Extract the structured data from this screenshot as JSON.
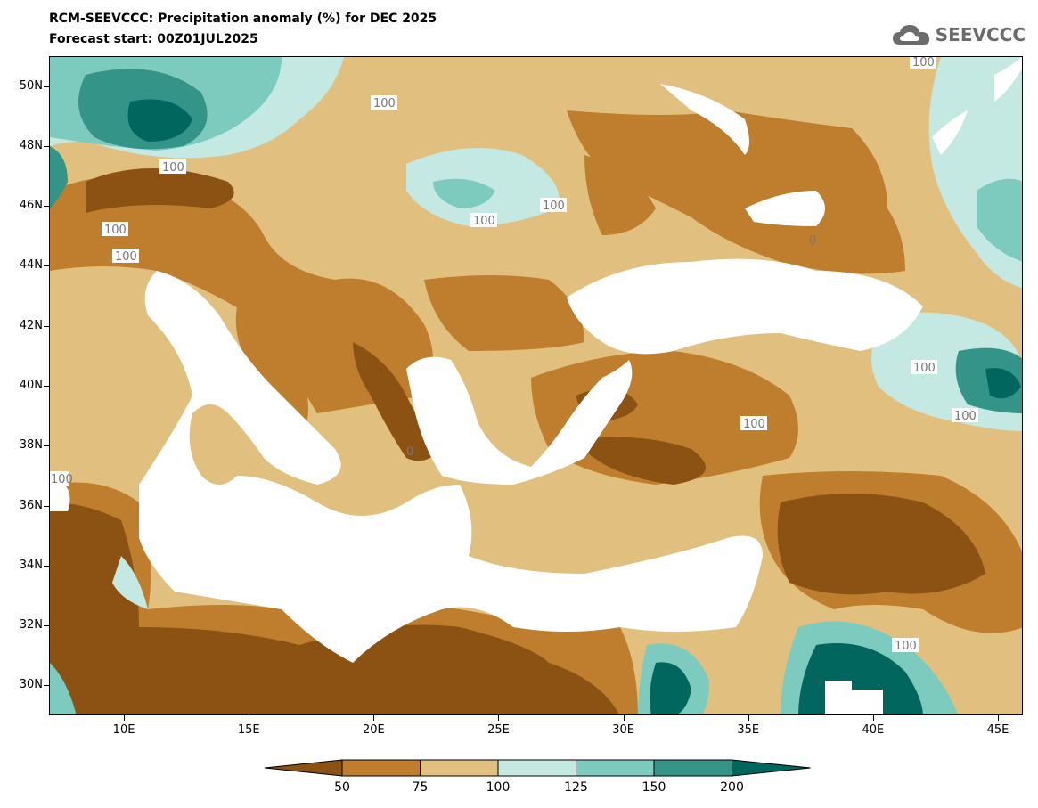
{
  "title_line1": "RCM-SEEVCCC: Precipitation anomaly (%) for DEC 2025",
  "title_line2": "Forecast start: 00Z01JUL2025",
  "logo": {
    "text": "SEEVCCC",
    "icon": "cloud-icon"
  },
  "axes": {
    "y_ticks": [
      "50N",
      "48N",
      "46N",
      "44N",
      "42N",
      "40N",
      "38N",
      "36N",
      "34N",
      "32N",
      "30N"
    ],
    "x_ticks": [
      "10E",
      "15E",
      "20E",
      "25E",
      "30E",
      "35E",
      "40E",
      "45E"
    ],
    "lat_range": [
      29,
      51
    ],
    "lon_range": [
      7,
      46
    ]
  },
  "contour_labels": [
    "100",
    "100",
    "100",
    "100",
    "100",
    "100",
    "100",
    "100",
    "100",
    "100",
    "100",
    "100",
    "0",
    "0",
    "0"
  ],
  "colorbar": {
    "labels": [
      "50",
      "75",
      "100",
      "125",
      "150",
      "200"
    ],
    "colors": [
      "#8c5214",
      "#bf7e2d",
      "#e1c07f",
      "#c4e9e2",
      "#7dcbbf",
      "#359488",
      "#01665e"
    ]
  },
  "colors": {
    "dark_brown": "#8c5214",
    "brown": "#bf7e2d",
    "tan": "#e1c07f",
    "light_teal": "#c4e9e2",
    "teal": "#7dcbbf",
    "dark_teal": "#359488",
    "deep_teal": "#01665e",
    "sea": "#ffffff"
  }
}
